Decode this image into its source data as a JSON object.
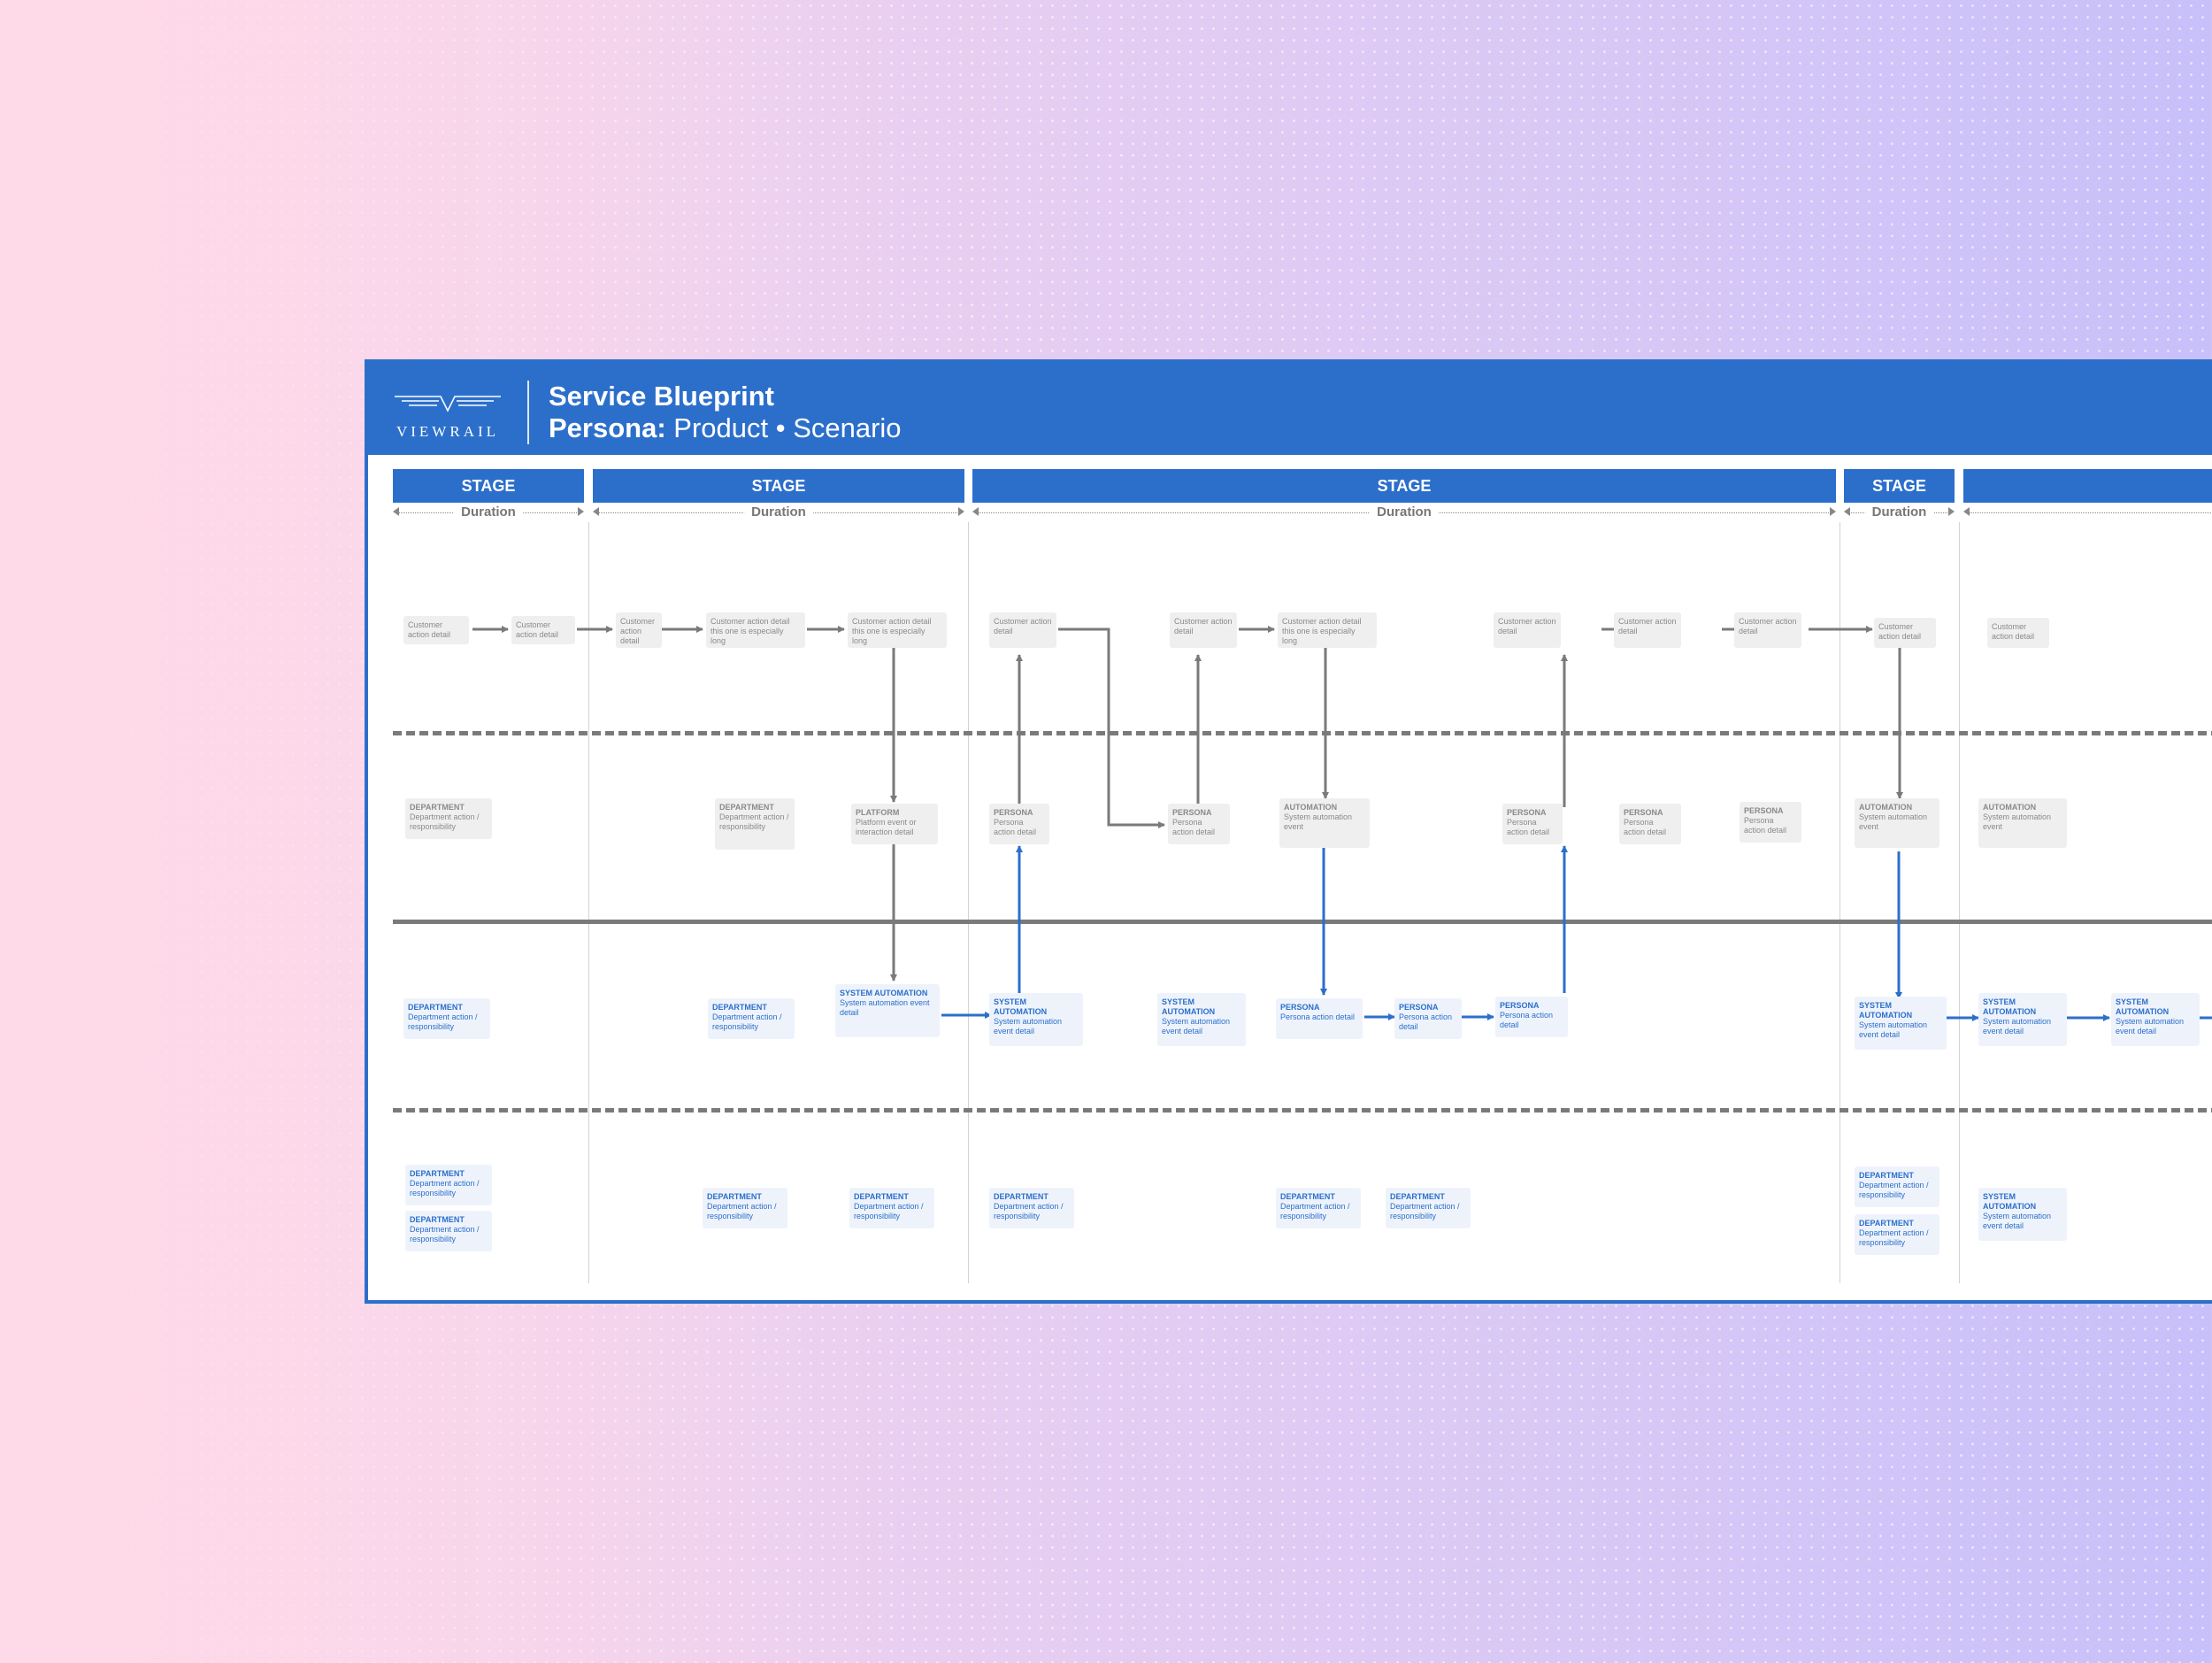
{
  "header": {
    "logo_text": "VIEWRAIL",
    "title": "Service Blueprint",
    "subtitle_bold": "Persona:",
    "subtitle_rest": " Product • Scenario"
  },
  "stages": [
    {
      "label": "STAGE",
      "duration": "Duration"
    },
    {
      "label": "STAGE",
      "duration": "Duration"
    },
    {
      "label": "STAGE",
      "duration": "Duration"
    },
    {
      "label": "STAGE",
      "duration": "Duration"
    },
    {
      "label": "",
      "duration": ""
    }
  ],
  "colors": {
    "brand": "#2c6fcb",
    "gray_line": "#7a7a7a",
    "card_gray": "#efefef",
    "card_blue": "#eef3fb"
  },
  "cards": [
    {
      "id": "c1",
      "style": "g",
      "head": "",
      "body": "Customer action detail"
    },
    {
      "id": "c2",
      "style": "g",
      "head": "",
      "body": "Customer action detail"
    },
    {
      "id": "c3",
      "style": "g",
      "head": "",
      "body": "Customer action detail"
    },
    {
      "id": "c4",
      "style": "g",
      "head": "",
      "body": "Customer action detail this one is especially long"
    },
    {
      "id": "c5",
      "style": "g",
      "head": "",
      "body": "Customer action detail this one is especially long"
    },
    {
      "id": "c6",
      "style": "g",
      "head": "",
      "body": "Customer action detail"
    },
    {
      "id": "c7",
      "style": "g",
      "head": "",
      "body": "Customer action detail"
    },
    {
      "id": "c8",
      "style": "g",
      "head": "",
      "body": "Customer action detail this one is especially long"
    },
    {
      "id": "c9",
      "style": "g",
      "head": "",
      "body": "Customer action detail"
    },
    {
      "id": "c10",
      "style": "g",
      "head": "",
      "body": "Customer action detail"
    },
    {
      "id": "c11",
      "style": "g",
      "head": "",
      "body": "Customer action detail"
    },
    {
      "id": "c12",
      "style": "g",
      "head": "",
      "body": "Customer action detail"
    },
    {
      "id": "c13",
      "style": "g",
      "head": "",
      "body": "Customer action detail"
    },
    {
      "id": "f1",
      "style": "g",
      "head": "DEPARTMENT",
      "body": "Department action / responsibility"
    },
    {
      "id": "f2",
      "style": "g",
      "head": "DEPARTMENT",
      "body": "Department action / responsibility"
    },
    {
      "id": "f3",
      "style": "g",
      "head": "PLATFORM",
      "body": "Platform event or interaction detail"
    },
    {
      "id": "f4",
      "style": "g",
      "head": "PERSONA",
      "body": "Persona action detail"
    },
    {
      "id": "f5",
      "style": "g",
      "head": "PERSONA",
      "body": "Persona action detail"
    },
    {
      "id": "f6",
      "style": "g",
      "head": "AUTOMATION",
      "body": "System automation event"
    },
    {
      "id": "f7",
      "style": "g",
      "head": "PERSONA",
      "body": "Persona action detail"
    },
    {
      "id": "f8",
      "style": "g",
      "head": "PERSONA",
      "body": "Persona action detail"
    },
    {
      "id": "f9",
      "style": "g",
      "head": "PERSONA",
      "body": "Persona action detail"
    },
    {
      "id": "f10",
      "style": "g",
      "head": "AUTOMATION",
      "body": "System automation event"
    },
    {
      "id": "f11",
      "style": "g",
      "head": "AUTOMATION",
      "body": "System automation event"
    },
    {
      "id": "k1",
      "style": "b",
      "head": "DEPARTMENT",
      "body": "Department action / responsibility"
    },
    {
      "id": "k2",
      "style": "b",
      "head": "DEPARTMENT",
      "body": "Department action / responsibility"
    },
    {
      "id": "k3",
      "style": "b",
      "head": "SYSTEM AUTOMATION",
      "body": "System automation event detail"
    },
    {
      "id": "k4",
      "style": "b",
      "head": "SYSTEM AUTOMATION",
      "body": "System automation event detail"
    },
    {
      "id": "k5",
      "style": "b",
      "head": "SYSTEM AUTOMATION",
      "body": "System automation event detail"
    },
    {
      "id": "k6",
      "style": "b",
      "head": "PERSONA",
      "body": "Persona action detail"
    },
    {
      "id": "k7",
      "style": "b",
      "head": "PERSONA",
      "body": "Persona action detail"
    },
    {
      "id": "k8",
      "style": "b",
      "head": "PERSONA",
      "body": "Persona action detail"
    },
    {
      "id": "k9",
      "style": "b",
      "head": "SYSTEM AUTOMATION",
      "body": "System automation event detail"
    },
    {
      "id": "k10",
      "style": "b",
      "head": "SYSTEM AUTOMATION",
      "body": "System automation event detail"
    },
    {
      "id": "k11",
      "style": "b",
      "head": "SYSTEM AUTOMATION",
      "body": "System automation event detail"
    },
    {
      "id": "s1",
      "style": "b",
      "head": "DEPARTMENT",
      "body": "Department action / responsibility"
    },
    {
      "id": "s2",
      "style": "b",
      "head": "DEPARTMENT",
      "body": "Department action / responsibility"
    },
    {
      "id": "s3",
      "style": "b",
      "head": "DEPARTMENT",
      "body": "Department action / responsibility"
    },
    {
      "id": "s4",
      "style": "b",
      "head": "DEPARTMENT",
      "body": "Department action / responsibility"
    },
    {
      "id": "s5",
      "style": "b",
      "head": "DEPARTMENT",
      "body": "Department action / responsibility"
    },
    {
      "id": "s6",
      "style": "b",
      "head": "DEPARTMENT",
      "body": "Department action / responsibility"
    },
    {
      "id": "s7",
      "style": "b",
      "head": "DEPARTMENT",
      "body": "Department action / responsibility"
    },
    {
      "id": "s8",
      "style": "b",
      "head": "DEPARTMENT",
      "body": "Department action / responsibility"
    },
    {
      "id": "s9",
      "style": "b",
      "head": "DEPARTMENT",
      "body": "Department action / responsibility"
    },
    {
      "id": "s10",
      "style": "b",
      "head": "SYSTEM AUTOMATION",
      "body": "System automation event detail"
    }
  ]
}
